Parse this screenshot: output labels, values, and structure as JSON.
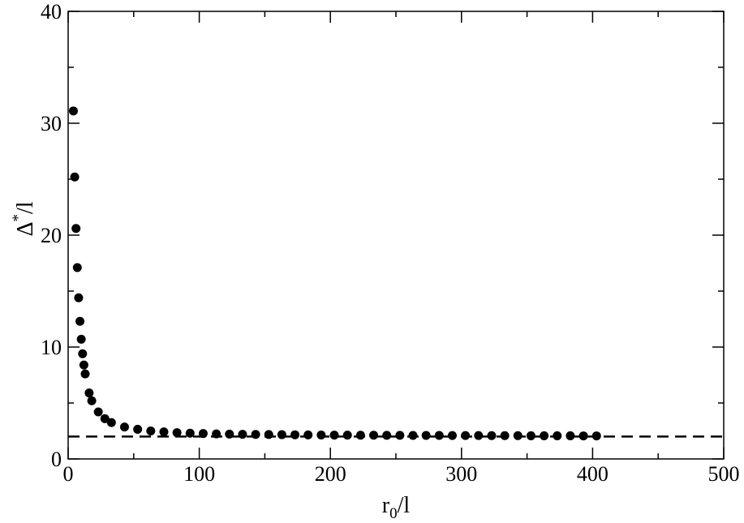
{
  "chart_data": {
    "type": "scatter",
    "xlabel": {
      "base": "r",
      "subscript": "0",
      "suffix": "/l"
    },
    "ylabel": {
      "base": "Δ",
      "superscript": "*",
      "suffix": "/l"
    },
    "xlim": [
      0,
      500
    ],
    "ylim": [
      0,
      40
    ],
    "x_ticks": [
      0,
      100,
      200,
      300,
      400,
      500
    ],
    "y_ticks": [
      0,
      10,
      20,
      30,
      40
    ],
    "grid": false,
    "point_color": "#000000",
    "asymptote": {
      "y": 2.0,
      "style": "dashed",
      "color": "#000000"
    },
    "series": [
      {
        "points": [
          [
            4,
            31.1
          ],
          [
            5,
            25.2
          ],
          [
            6,
            20.6
          ],
          [
            7,
            17.1
          ],
          [
            8,
            14.4
          ],
          [
            9,
            12.3
          ],
          [
            10,
            10.7
          ],
          [
            11,
            9.4
          ],
          [
            12,
            8.4
          ],
          [
            13,
            7.6
          ],
          [
            16,
            5.9
          ],
          [
            18,
            5.2
          ],
          [
            23,
            4.2
          ],
          [
            28,
            3.6
          ],
          [
            33,
            3.25
          ],
          [
            43,
            2.85
          ],
          [
            53,
            2.65
          ],
          [
            63,
            2.5
          ],
          [
            73,
            2.42
          ],
          [
            83,
            2.35
          ],
          [
            93,
            2.3
          ],
          [
            103,
            2.27
          ],
          [
            113,
            2.24
          ],
          [
            123,
            2.22
          ],
          [
            133,
            2.2
          ],
          [
            143,
            2.19
          ],
          [
            153,
            2.18
          ],
          [
            163,
            2.17
          ],
          [
            173,
            2.16
          ],
          [
            183,
            2.15
          ],
          [
            193,
            2.14
          ],
          [
            203,
            2.13
          ],
          [
            213,
            2.13
          ],
          [
            223,
            2.12
          ],
          [
            233,
            2.12
          ],
          [
            243,
            2.11
          ],
          [
            253,
            2.11
          ],
          [
            263,
            2.1
          ],
          [
            273,
            2.1
          ],
          [
            283,
            2.1
          ],
          [
            293,
            2.09
          ],
          [
            303,
            2.09
          ],
          [
            313,
            2.09
          ],
          [
            323,
            2.08
          ],
          [
            333,
            2.08
          ],
          [
            343,
            2.08
          ],
          [
            353,
            2.07
          ],
          [
            363,
            2.07
          ],
          [
            373,
            2.07
          ],
          [
            383,
            2.07
          ],
          [
            393,
            2.06
          ],
          [
            403,
            2.06
          ]
        ]
      }
    ]
  }
}
